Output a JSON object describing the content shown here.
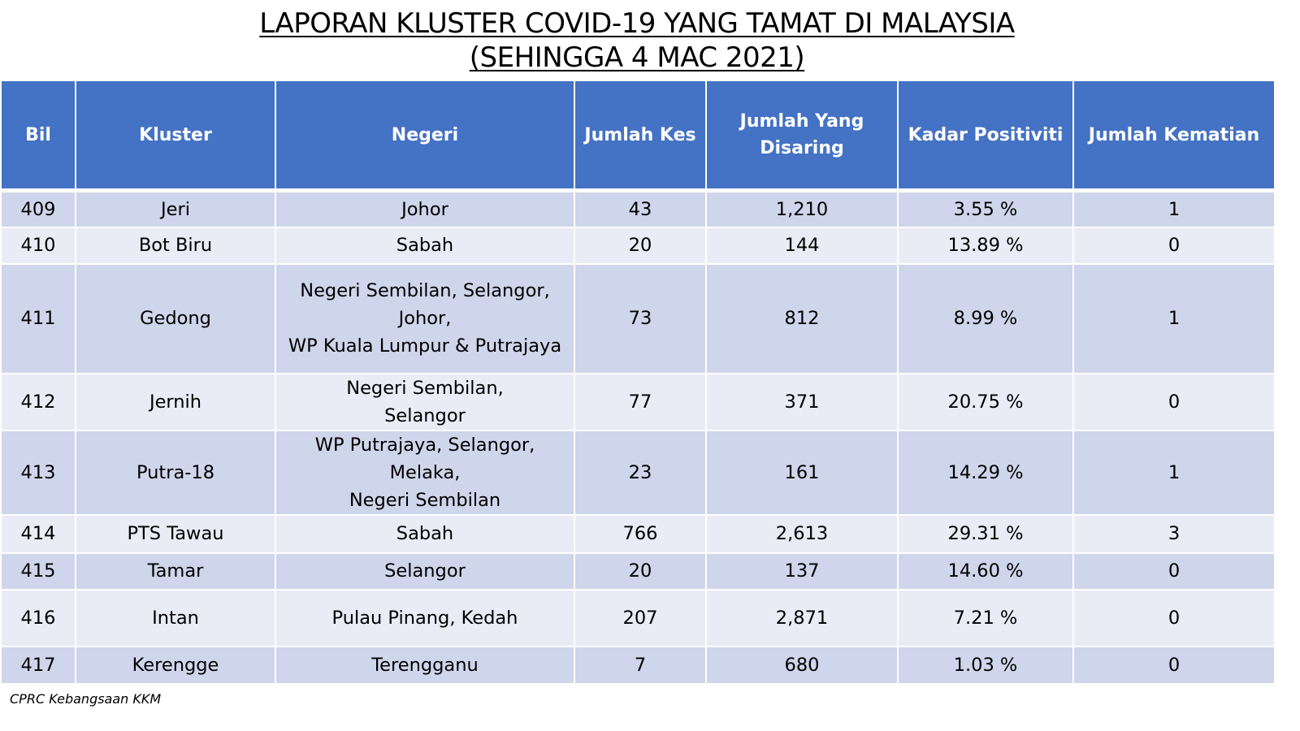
{
  "title": {
    "line1": "LAPORAN KLUSTER COVID-19 YANG TAMAT DI MALAYSIA",
    "line2": "(SEHINGGA 4 MAC 2021)"
  },
  "colors": {
    "header_bg": "#4472c4",
    "row_dark": "#cfd5ea",
    "row_light": "#e9ebf5"
  },
  "table": {
    "headers": {
      "bil": "Bil",
      "kluster": "Kluster",
      "negeri": "Negeri",
      "jumlah_kes": "Jumlah Kes",
      "jumlah_disaring": "Jumlah Yang\nDisaring",
      "kadar_positiviti": "Kadar Positiviti",
      "jumlah_kematian": "Jumlah Kematian"
    },
    "rows": [
      {
        "bil": "409",
        "kluster": "Jeri",
        "negeri": "Johor",
        "kes": "43",
        "disaring": "1,210",
        "positiviti": "3.55 %",
        "kematian": "1"
      },
      {
        "bil": "410",
        "kluster": "Bot Biru",
        "negeri": "Sabah",
        "kes": "20",
        "disaring": "144",
        "positiviti": "13.89 %",
        "kematian": "0"
      },
      {
        "bil": "411",
        "kluster": "Gedong",
        "negeri": "Negeri Sembilan, Selangor,\nJohor,\nWP Kuala Lumpur & Putrajaya",
        "kes": "73",
        "disaring": "812",
        "positiviti": "8.99 %",
        "kematian": "1"
      },
      {
        "bil": "412",
        "kluster": "Jernih",
        "negeri": "Negeri Sembilan,\nSelangor",
        "kes": "77",
        "disaring": "371",
        "positiviti": "20.75 %",
        "kematian": "0"
      },
      {
        "bil": "413",
        "kluster": "Putra-18",
        "negeri": "WP Putrajaya, Selangor, Melaka,\nNegeri Sembilan",
        "kes": "23",
        "disaring": "161",
        "positiviti": "14.29 %",
        "kematian": "1"
      },
      {
        "bil": "414",
        "kluster": "PTS Tawau",
        "negeri": "Sabah",
        "kes": "766",
        "disaring": "2,613",
        "positiviti": "29.31 %",
        "kematian": "3"
      },
      {
        "bil": "415",
        "kluster": "Tamar",
        "negeri": "Selangor",
        "kes": "20",
        "disaring": "137",
        "positiviti": "14.60 %",
        "kematian": "0"
      },
      {
        "bil": "416",
        "kluster": "Intan",
        "negeri": "Pulau Pinang, Kedah",
        "kes": "207",
        "disaring": "2,871",
        "positiviti": "7.21 %",
        "kematian": "0"
      },
      {
        "bil": "417",
        "kluster": "Kerengge",
        "negeri": "Terengganu",
        "kes": "7",
        "disaring": "680",
        "positiviti": "1.03 %",
        "kematian": "0"
      }
    ]
  },
  "source_note": "CPRC Kebangsaan KKM"
}
